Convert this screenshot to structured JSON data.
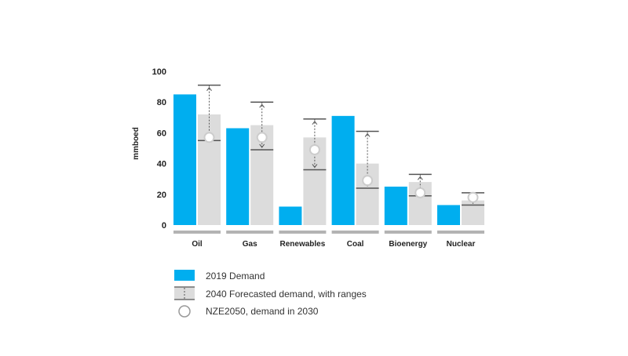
{
  "chart_data": {
    "type": "bar",
    "title": "",
    "xlabel": "",
    "ylabel": "mmboed",
    "ylim": [
      0,
      100
    ],
    "yticks": [
      0,
      20,
      40,
      60,
      80,
      100
    ],
    "grid": false,
    "legend_position": "bottom",
    "categories": [
      "Oil",
      "Gas",
      "Renewables",
      "Coal",
      "Bioenergy",
      "Nuclear"
    ],
    "series": [
      {
        "name": "2019 Demand",
        "values": [
          85,
          63,
          12,
          71,
          25,
          13
        ]
      },
      {
        "name": "2040 Forecasted demand, with ranges",
        "values": [
          72,
          65,
          57,
          40,
          28,
          16
        ],
        "range_low": [
          55,
          49,
          36,
          24,
          19,
          13
        ],
        "range_high": [
          91,
          80,
          69,
          61,
          33,
          21
        ]
      },
      {
        "name": "NZE2050, demand in 2030",
        "values": [
          57,
          57,
          49,
          29,
          21,
          18
        ]
      }
    ],
    "colors": {
      "demand_2019": "#00aeef",
      "forecast_2040": "#dcdcdc",
      "range_line": "#555555",
      "marker_fill": "#ffffff",
      "marker_stroke": "#cccccc",
      "baseline": "#b3b3b3"
    }
  }
}
